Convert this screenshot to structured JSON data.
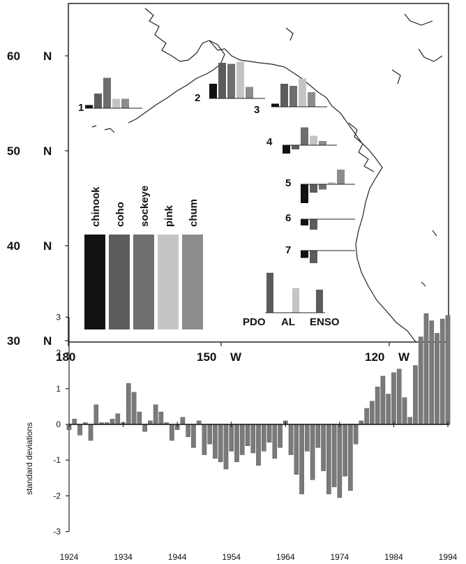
{
  "chart_data": [
    {
      "type": "map-bar",
      "latitude_labels": [
        "60",
        "50",
        "40",
        "30"
      ],
      "latitude_suffix": "N",
      "longitude_labels": [
        {
          "value": "180",
          "suffix": ""
        },
        {
          "value": "150",
          "suffix": "W"
        },
        {
          "value": "120",
          "suffix": "W"
        }
      ],
      "species": [
        {
          "name": "chinook",
          "color": "#111111"
        },
        {
          "name": "coho",
          "color": "#5c5c5c"
        },
        {
          "name": "sockeye",
          "color": "#6e6e6e"
        },
        {
          "name": "pink",
          "color": "#c4c4c4"
        },
        {
          "name": "chum",
          "color": "#8c8c8c"
        }
      ],
      "regions": [
        {
          "label": "1",
          "values": [
            0.15,
            0.7,
            1.45,
            0.45,
            0.45
          ]
        },
        {
          "label": "2",
          "values": [
            0.7,
            1.7,
            1.65,
            1.75,
            0.55
          ]
        },
        {
          "label": "3",
          "values": [
            0.15,
            1.1,
            1.0,
            1.35,
            0.7
          ]
        },
        {
          "label": "4",
          "values": [
            -0.4,
            -0.2,
            0.85,
            0.45,
            0.2
          ]
        },
        {
          "label": "5",
          "values": [
            -0.9,
            -0.4,
            -0.25,
            0.1,
            0.7
          ]
        },
        {
          "label": "6",
          "values": [
            -0.3,
            -0.5,
            0,
            0,
            0
          ]
        },
        {
          "label": "7",
          "values": [
            -0.35,
            -0.6,
            0,
            0,
            0
          ]
        }
      ],
      "climate_indices": {
        "categories": [
          "PDO",
          "AL",
          "ENSO"
        ],
        "values": [
          1.3,
          0.8,
          0.75
        ]
      }
    },
    {
      "type": "bar",
      "ylabel": "standard deviations",
      "ylim": [
        -3,
        3
      ],
      "yticks": [
        3,
        2,
        1,
        0,
        -1,
        -2,
        -3
      ],
      "xlim": [
        1924,
        1994
      ],
      "xticks": [
        1924,
        1934,
        1944,
        1954,
        1964,
        1974,
        1984,
        1994
      ],
      "x": [
        1924,
        1925,
        1926,
        1927,
        1928,
        1929,
        1930,
        1931,
        1932,
        1933,
        1934,
        1935,
        1936,
        1937,
        1938,
        1939,
        1940,
        1941,
        1942,
        1943,
        1944,
        1945,
        1946,
        1947,
        1948,
        1949,
        1950,
        1951,
        1952,
        1953,
        1954,
        1955,
        1956,
        1957,
        1958,
        1959,
        1960,
        1961,
        1962,
        1963,
        1964,
        1965,
        1966,
        1967,
        1968,
        1969,
        1970,
        1971,
        1972,
        1973,
        1974,
        1975,
        1976,
        1977,
        1978,
        1979,
        1980,
        1981,
        1982,
        1983,
        1984,
        1985,
        1986,
        1987,
        1988,
        1989,
        1990,
        1991,
        1992,
        1993,
        1994
      ],
      "values": [
        -0.15,
        0.15,
        -0.3,
        0.05,
        -0.45,
        0.55,
        0.05,
        0.05,
        0.15,
        0.3,
        0.05,
        1.15,
        0.9,
        0.35,
        -0.2,
        0.1,
        0.55,
        0.35,
        0.05,
        -0.45,
        -0.15,
        0.2,
        -0.35,
        -0.65,
        0.1,
        -0.85,
        -0.55,
        -0.95,
        -1.05,
        -1.25,
        -0.75,
        -1.05,
        -0.85,
        -0.6,
        -0.8,
        -1.15,
        -0.75,
        -0.5,
        -0.95,
        -0.65,
        0.1,
        -0.85,
        -1.4,
        -1.95,
        -0.75,
        -1.55,
        -0.65,
        -1.3,
        -1.95,
        -1.75,
        -2.05,
        -1.45,
        -1.85,
        -0.55,
        0.1,
        0.45,
        0.65,
        1.05,
        1.35,
        0.85,
        1.45,
        1.55,
        0.75,
        0.2,
        1.65,
        2.45,
        3.1,
        2.9,
        2.55,
        2.95,
        3.05
      ]
    }
  ]
}
